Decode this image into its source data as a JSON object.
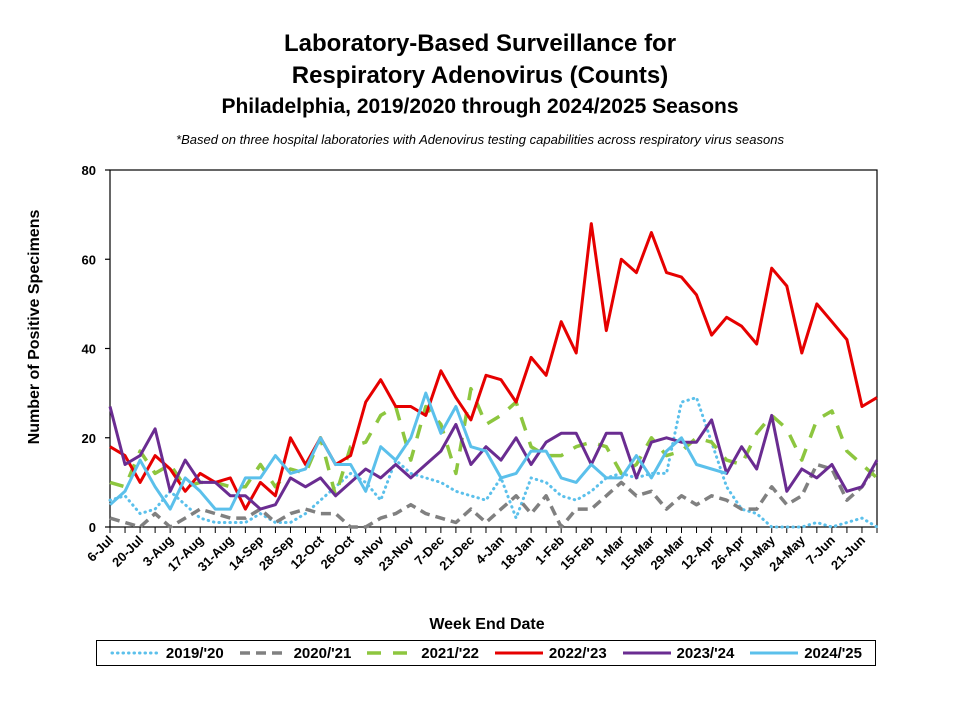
{
  "chart_data": {
    "type": "line",
    "title": "Laboratory-Based Surveillance for",
    "title_line2": "Respiratory Adenovirus (Counts)",
    "subtitle": "Philadelphia, 2019/2020 through 2024/2025 Seasons",
    "note": "*Based on three hospital laboratories with Adenovirus testing capabilities across respiratory virus seasons",
    "xlabel": "Week End Date",
    "ylabel": "Number of Positive Specimens",
    "ylim": [
      0,
      80
    ],
    "yticks": [
      0,
      20,
      40,
      60,
      80
    ],
    "grid": false,
    "legend_position": "bottom",
    "n_weeks": 52,
    "x_tick_labels": [
      "6-Jul",
      "20-Jul",
      "3-Aug",
      "17-Aug",
      "31-Aug",
      "14-Sep",
      "28-Sep",
      "12-Oct",
      "26-Oct",
      "9-Nov",
      "23-Nov",
      "7-Dec",
      "21-Dec",
      "4-Jan",
      "18-Jan",
      "1-Feb",
      "15-Feb",
      "1-Mar",
      "15-Mar",
      "29-Mar",
      "12-Apr",
      "26-Apr",
      "10-May",
      "24-May",
      "7-Jun",
      "21-Jun"
    ],
    "series": [
      {
        "name": "2019/'20",
        "color": "#5bc0eb",
        "style": "dotted",
        "values": [
          6,
          7,
          3,
          4,
          8,
          5,
          2,
          1,
          1,
          1,
          3,
          1,
          1,
          3,
          6,
          9,
          12,
          10,
          6,
          15,
          12,
          11,
          10,
          8,
          7,
          6,
          11,
          2,
          11,
          10,
          7,
          6,
          8,
          11,
          12,
          11,
          12,
          12,
          28,
          29,
          19,
          9,
          4,
          3,
          0,
          0,
          0,
          1,
          0,
          1,
          2,
          0
        ]
      },
      {
        "name": "2020/'21",
        "color": "#808080",
        "style": "dashed",
        "values": [
          2,
          1,
          0,
          3,
          0,
          2,
          4,
          3,
          2,
          2,
          4,
          1,
          3,
          4,
          3,
          3,
          0,
          0,
          2,
          3,
          5,
          3,
          2,
          1,
          4,
          1,
          4,
          7,
          3,
          7,
          0,
          4,
          4,
          7,
          10,
          7,
          8,
          4,
          7,
          5,
          7,
          6,
          4,
          4,
          9,
          5,
          7,
          14,
          13,
          6,
          9,
          14
        ]
      },
      {
        "name": "2021/'22",
        "color": "#8dc63f",
        "style": "longdash",
        "values": [
          10,
          9,
          17,
          12,
          14,
          9,
          10,
          10,
          9,
          9,
          14,
          9,
          13,
          12,
          20,
          7,
          18,
          19,
          25,
          27,
          15,
          27,
          23,
          12,
          31,
          23,
          25,
          28,
          18,
          16,
          16,
          18,
          19,
          18,
          12,
          14,
          20,
          16,
          17,
          20,
          19,
          15,
          14,
          21,
          25,
          22,
          15,
          24,
          26,
          17,
          14,
          11
        ]
      },
      {
        "name": "2022/'23",
        "color": "#e60000",
        "style": "solid",
        "values": [
          18,
          16,
          10,
          16,
          13,
          8,
          12,
          10,
          11,
          4,
          10,
          7,
          20,
          14,
          20,
          14,
          16,
          28,
          33,
          27,
          27,
          25,
          35,
          29,
          24,
          34,
          33,
          28,
          38,
          34,
          46,
          39,
          68,
          44,
          60,
          57,
          66,
          57,
          56,
          52,
          43,
          47,
          45,
          41,
          58,
          54,
          39,
          50,
          46,
          42,
          27,
          29
        ]
      },
      {
        "name": "2023/'24",
        "color": "#6a2c91",
        "style": "solid",
        "values": [
          27,
          14,
          16,
          22,
          8,
          15,
          10,
          10,
          7,
          7,
          4,
          5,
          11,
          9,
          11,
          7,
          10,
          13,
          11,
          14,
          11,
          14,
          17,
          23,
          14,
          18,
          15,
          20,
          14,
          19,
          21,
          21,
          14,
          21,
          21,
          11,
          19,
          20,
          19,
          19,
          24,
          12,
          18,
          13,
          25,
          8,
          13,
          11,
          14,
          8,
          9,
          15
        ]
      },
      {
        "name": "2024/'25",
        "color": "#5bc0eb",
        "style": "solid",
        "values": [
          5,
          8,
          15,
          9,
          4,
          11,
          8,
          4,
          4,
          11,
          11,
          16,
          12,
          13,
          20,
          14,
          14,
          8,
          18,
          15,
          20,
          30,
          21,
          27,
          18,
          17,
          11,
          12,
          17,
          17,
          11,
          10,
          14,
          11,
          11,
          16,
          11,
          17,
          20,
          14,
          13,
          12
        ]
      }
    ]
  }
}
